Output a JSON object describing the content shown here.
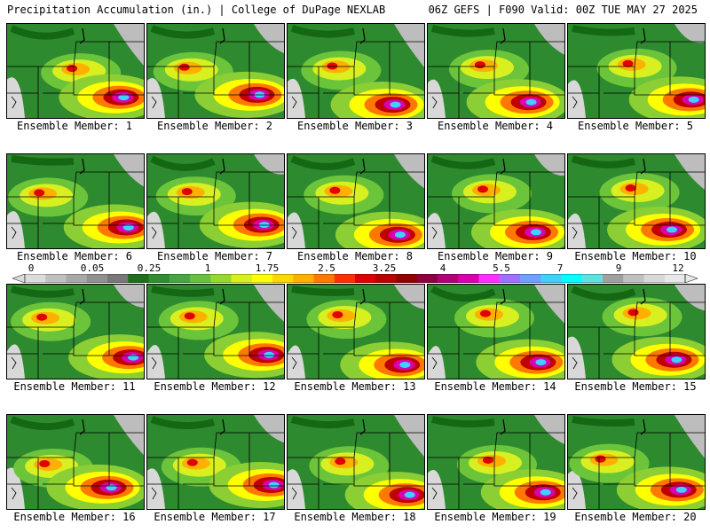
{
  "header": {
    "left": "Precipitation Accumulation (in.) | College of DuPage NEXLAB",
    "right": "06Z GEFS | F090 Valid: 00Z TUE MAY 27 2025"
  },
  "colorbar": {
    "tick_labels": [
      "0",
      "0.05",
      "0.25",
      "1",
      "1.75",
      "2.5",
      "3.25",
      "4",
      "5.5",
      "7",
      "9",
      "12"
    ],
    "colors": [
      "#dcdcdc",
      "#c0c0c0",
      "#a8a8a8",
      "#909090",
      "#787878",
      "#1e6e1e",
      "#2f8f2f",
      "#46a640",
      "#66c23a",
      "#96d830",
      "#d8f020",
      "#ffff00",
      "#ffd800",
      "#ffb000",
      "#ff7800",
      "#ff3000",
      "#e00000",
      "#b80000",
      "#900000",
      "#8a0040",
      "#b0007a",
      "#d800b0",
      "#ff30ff",
      "#a070ff",
      "#6fa0ff",
      "#40d0ff",
      "#00ffff",
      "#60e0e0",
      "#a0a0a0",
      "#c0c0c0",
      "#d8d8d8",
      "#e8e8e8"
    ]
  },
  "members": [
    {
      "label": "Ensemble Member: 1"
    },
    {
      "label": "Ensemble Member: 2"
    },
    {
      "label": "Ensemble Member: 3"
    },
    {
      "label": "Ensemble Member: 4"
    },
    {
      "label": "Ensemble Member: 5"
    },
    {
      "label": "Ensemble Member: 6"
    },
    {
      "label": "Ensemble Member: 7"
    },
    {
      "label": "Ensemble Member: 8"
    },
    {
      "label": "Ensemble Member: 9"
    },
    {
      "label": "Ensemble Member: 10"
    },
    {
      "label": "Ensemble Member: 11"
    },
    {
      "label": "Ensemble Member: 12"
    },
    {
      "label": "Ensemble Member: 13"
    },
    {
      "label": "Ensemble Member: 14"
    },
    {
      "label": "Ensemble Member: 15"
    },
    {
      "label": "Ensemble Member: 16"
    },
    {
      "label": "Ensemble Member: 17"
    },
    {
      "label": "Ensemble Member: 18"
    },
    {
      "label": "Ensemble Member: 19"
    },
    {
      "label": "Ensemble Member: 20"
    }
  ]
}
